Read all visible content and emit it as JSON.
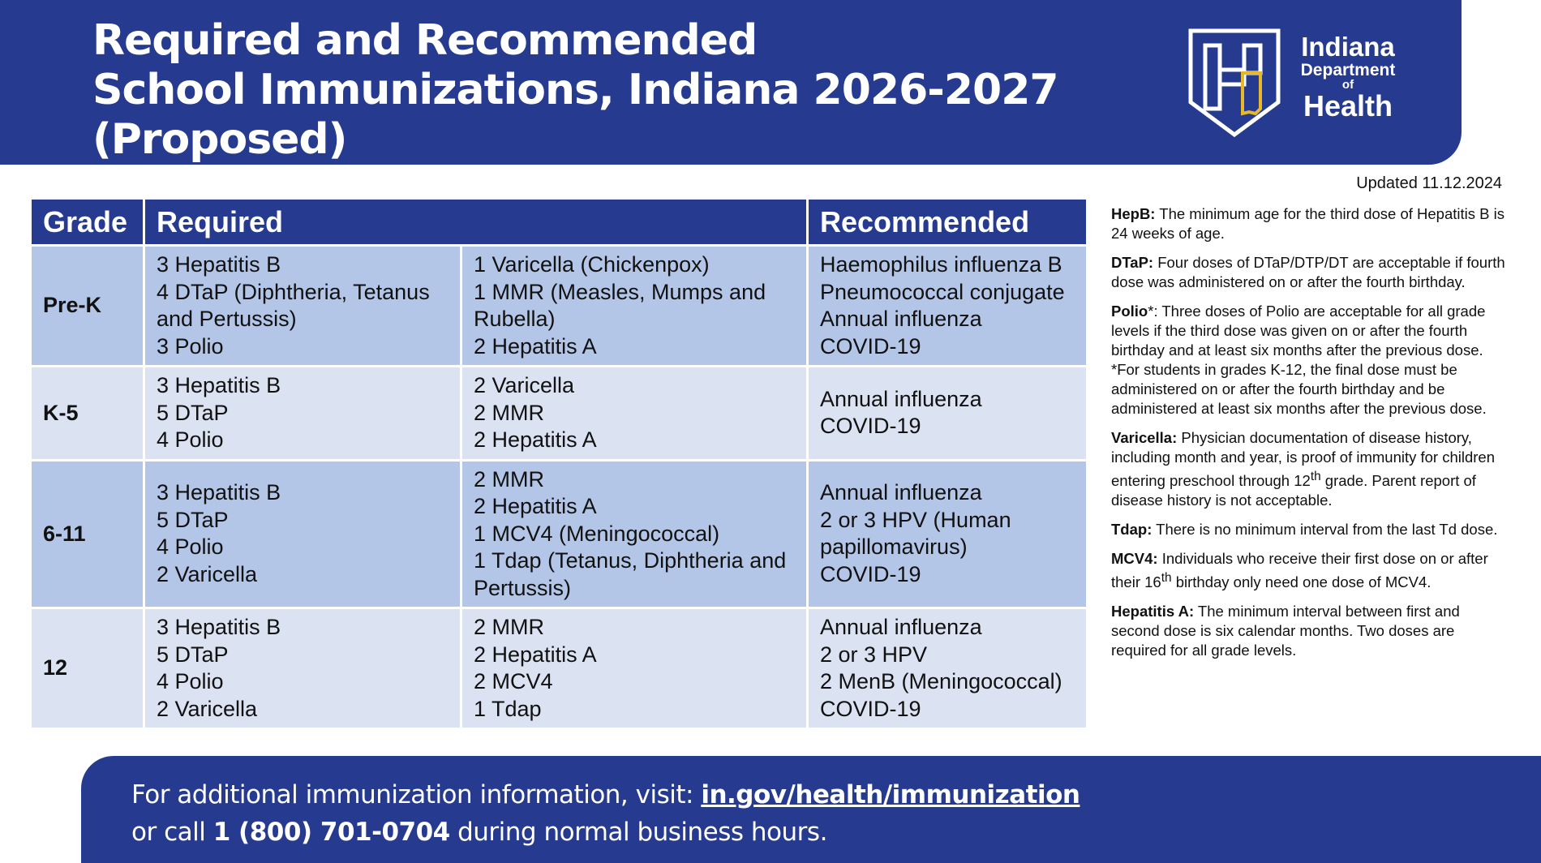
{
  "header": {
    "title_lines": [
      "Required and Recommended",
      "School Immunizations, Indiana 2026-2027",
      "(Proposed)"
    ],
    "logo": {
      "line1": "Indiana",
      "line2": "Department",
      "line3": "of",
      "line4": "Health"
    }
  },
  "updated": "Updated 11.12.2024",
  "table": {
    "headers": {
      "grade": "Grade",
      "required": "Required",
      "recommended": "Recommended"
    },
    "rows": [
      {
        "grade": "Pre-K",
        "required_a": [
          "3 Hepatitis B",
          "4 DTaP (Diphtheria, Tetanus",
          "and Pertussis)",
          "3 Polio"
        ],
        "required_b": [
          "1 Varicella (Chickenpox)",
          "1 MMR (Measles, Mumps and",
          "Rubella)",
          "2 Hepatitis A"
        ],
        "recommended": [
          "Haemophilus influenza B",
          "Pneumococcal conjugate",
          "Annual influenza",
          "COVID-19"
        ]
      },
      {
        "grade": "K-5",
        "required_a": [
          "3 Hepatitis B",
          "5 DTaP",
          "4 Polio"
        ],
        "required_b": [
          "2 Varicella",
          "2 MMR",
          "2 Hepatitis A"
        ],
        "recommended": [
          "Annual influenza",
          "COVID-19"
        ]
      },
      {
        "grade": "6-11",
        "required_a": [
          "3 Hepatitis B",
          "5 DTaP",
          "4 Polio",
          "2 Varicella"
        ],
        "required_b": [
          "2 MMR",
          "2 Hepatitis A",
          "1 MCV4 (Meningococcal)",
          "1 Tdap (Tetanus, Diphtheria and",
          "Pertussis)"
        ],
        "recommended": [
          "Annual influenza",
          "2 or 3 HPV (Human",
          "papillomavirus)",
          "COVID-19"
        ]
      },
      {
        "grade": "12",
        "required_a": [
          "3 Hepatitis B",
          "5 DTaP",
          "4 Polio",
          "2 Varicella"
        ],
        "required_b": [
          "2 MMR",
          "2 Hepatitis A",
          "2 MCV4",
          "1 Tdap"
        ],
        "recommended": [
          "Annual influenza",
          "2 or 3 HPV",
          "2 MenB (Meningococcal)",
          "COVID-19"
        ]
      }
    ]
  },
  "notes": [
    {
      "term": "HepB:",
      "text": " The minimum age for the third dose of Hepatitis B is 24 weeks of age."
    },
    {
      "term": "DTaP:",
      "text": " Four doses of DTaP/DTP/DT are acceptable if fourth dose was administered on or after the fourth birthday."
    },
    {
      "term": "Polio",
      "star": "*",
      "text": ": Three doses of Polio are acceptable for all grade levels if the third dose was given on or after the fourth birthday and at least six months after the previous dose.",
      "extra": "*For students in grades K-12, the final dose must be administered on or after the fourth birthday and be administered at least six months after the previous dose."
    },
    {
      "term": "Varicella:",
      "text": " Physician documentation of disease history, including month and year, is proof of immunity for children entering preschool through 12",
      "sup": "th",
      "text2": " grade. Parent report of disease history is not acceptable."
    },
    {
      "term": "Tdap:",
      "text": " There is no minimum interval from the last Td dose."
    },
    {
      "term": "MCV4:",
      "text": " Individuals who receive their first dose on or after their 16",
      "sup": "th",
      "text2": " birthday only need one dose of MCV4."
    },
    {
      "term": "Hepatitis A:",
      "text": " The minimum interval between first and second dose is six calendar months. Two doses are required for all grade levels."
    }
  ],
  "footer": {
    "line1_prefix": "For additional immunization information, visit: ",
    "link": "in.gov/health/immunization",
    "line2_prefix": "or call ",
    "phone": "1 (800) 701-0704",
    "line2_suffix": " during normal business hours."
  },
  "colors": {
    "brand_blue": "#263b8f",
    "row_dark": "#b4c6e7",
    "row_light": "#dbe3f3",
    "logo_gold": "#e7b92a"
  }
}
